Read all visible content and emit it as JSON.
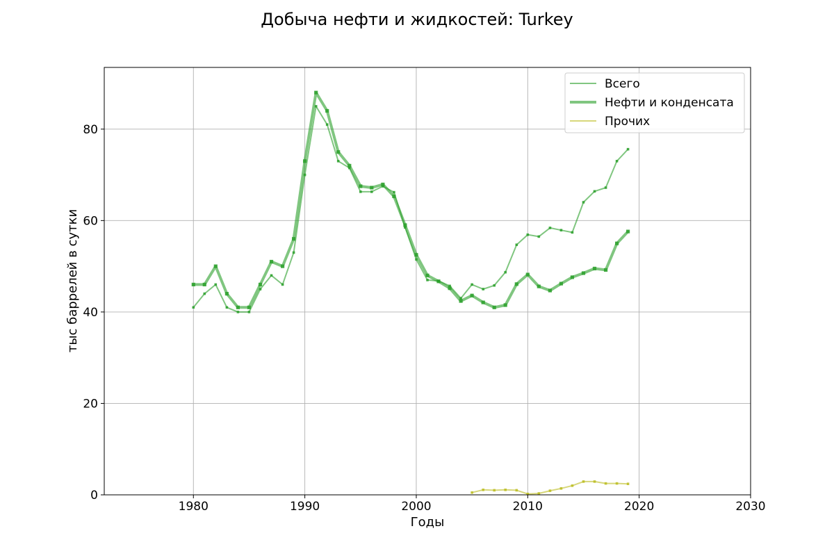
{
  "chart_data": {
    "type": "line",
    "title": "Добыча нефти и жидкостей: Turkey",
    "xlabel": "Годы",
    "ylabel": "тыс баррелей в сутки",
    "xlim": [
      1972,
      2030
    ],
    "ylim": [
      0,
      93.5
    ],
    "xticks": [
      "1980",
      "1990",
      "2000",
      "2010",
      "2020",
      "2030"
    ],
    "yticks": [
      "0",
      "20",
      "40",
      "60",
      "80"
    ],
    "grid": true,
    "legend_position": "top-right",
    "series": [
      {
        "name": "Всего",
        "color": "#2ca02c",
        "style": "thin",
        "x": [
          1980,
          1981,
          1982,
          1983,
          1984,
          1985,
          1986,
          1987,
          1988,
          1989,
          1990,
          1991,
          1992,
          1993,
          1994,
          1995,
          1996,
          1997,
          1998,
          1999,
          2000,
          2001,
          2002,
          2003,
          2004,
          2005,
          2006,
          2007,
          2008,
          2009,
          2010,
          2011,
          2012,
          2013,
          2014,
          2015,
          2016,
          2017,
          2018,
          2019
        ],
        "values": [
          41,
          44,
          46,
          41,
          40,
          40,
          45,
          48,
          46,
          53,
          70,
          85,
          81,
          73,
          71.5,
          66.3,
          66.3,
          67.5,
          66.2,
          58.5,
          51.5,
          47,
          46.8,
          45.7,
          43,
          46,
          45,
          45.8,
          48.7,
          54.7,
          56.9,
          56.5,
          58.4,
          57.9,
          57.4,
          64,
          66.4,
          67.2,
          73,
          75.6
        ]
      },
      {
        "name": "Нефти и конденсата",
        "color": "#2ca02c",
        "style": "thick",
        "x": [
          1980,
          1981,
          1982,
          1983,
          1984,
          1985,
          1986,
          1987,
          1988,
          1989,
          1990,
          1991,
          1992,
          1993,
          1994,
          1995,
          1996,
          1997,
          1998,
          1999,
          2000,
          2001,
          2002,
          2003,
          2004,
          2005,
          2006,
          2007,
          2008,
          2009,
          2010,
          2011,
          2012,
          2013,
          2014,
          2015,
          2016,
          2017,
          2018,
          2019
        ],
        "values": [
          46,
          46,
          50,
          44,
          41,
          41,
          46,
          51,
          50,
          56,
          73,
          88,
          84,
          75,
          72,
          67.5,
          67.2,
          67.9,
          65.3,
          59,
          52.5,
          48,
          46.7,
          45.2,
          42.4,
          43.6,
          42.1,
          41,
          41.5,
          46.1,
          48.2,
          45.6,
          44.7,
          46.2,
          47.6,
          48.5,
          49.5,
          49.2,
          55,
          57.6
        ]
      },
      {
        "name": "Прочих",
        "color": "#bcbd22",
        "style": "thin",
        "x": [
          2005,
          2006,
          2007,
          2008,
          2009,
          2010,
          2011,
          2012,
          2013,
          2014,
          2015,
          2016,
          2017,
          2018,
          2019
        ],
        "values": [
          0.5,
          1.1,
          1.0,
          1.1,
          1.0,
          0.2,
          0.3,
          0.9,
          1.4,
          2.0,
          2.9,
          2.9,
          2.5,
          2.5,
          2.4
        ]
      }
    ]
  }
}
